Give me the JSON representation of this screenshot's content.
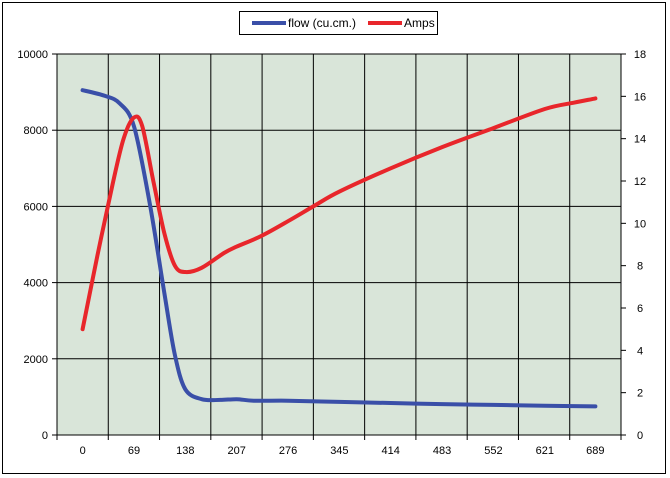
{
  "chart_data": {
    "type": "line",
    "title": "",
    "xlabel": "",
    "ylabel": "",
    "y2label": "",
    "x": [
      0,
      69,
      138,
      207,
      276,
      345,
      414,
      483,
      552,
      621,
      689
    ],
    "ylim": [
      0,
      10000
    ],
    "y2lim": [
      0,
      18
    ],
    "y_ticks": [
      "0",
      "2000",
      "4000",
      "6000",
      "8000",
      "10000"
    ],
    "y2_ticks": [
      "0",
      "2",
      "4",
      "6",
      "8",
      "10",
      "12",
      "14",
      "16",
      "18"
    ],
    "plot_background": "#d9e5d9",
    "grid": true,
    "legend_position": "top",
    "series": [
      {
        "name": "flow (cu.cm.)",
        "axis": "left",
        "color": "#3a4fa8",
        "points": [
          [
            0,
            9050
          ],
          [
            30,
            8900
          ],
          [
            50,
            8700
          ],
          [
            69,
            8100
          ],
          [
            90,
            6100
          ],
          [
            110,
            3700
          ],
          [
            124,
            2100
          ],
          [
            138,
            1200
          ],
          [
            160,
            940
          ],
          [
            185,
            920
          ],
          [
            207,
            940
          ],
          [
            230,
            900
          ],
          [
            276,
            900
          ],
          [
            345,
            870
          ],
          [
            414,
            840
          ],
          [
            483,
            810
          ],
          [
            552,
            790
          ],
          [
            621,
            770
          ],
          [
            689,
            750
          ]
        ]
      },
      {
        "name": "Amps",
        "axis": "right",
        "color": "#e8262b",
        "points": [
          [
            0,
            5.0
          ],
          [
            20,
            8.5
          ],
          [
            40,
            11.8
          ],
          [
            55,
            14.0
          ],
          [
            69,
            15.0
          ],
          [
            80,
            14.6
          ],
          [
            95,
            12.0
          ],
          [
            110,
            9.5
          ],
          [
            124,
            8.0
          ],
          [
            138,
            7.7
          ],
          [
            160,
            7.9
          ],
          [
            190,
            8.6
          ],
          [
            207,
            8.9
          ],
          [
            240,
            9.4
          ],
          [
            276,
            10.1
          ],
          [
            310,
            10.8
          ],
          [
            345,
            11.5
          ],
          [
            414,
            12.6
          ],
          [
            483,
            13.6
          ],
          [
            552,
            14.5
          ],
          [
            621,
            15.4
          ],
          [
            660,
            15.7
          ],
          [
            689,
            15.9
          ]
        ]
      }
    ]
  }
}
